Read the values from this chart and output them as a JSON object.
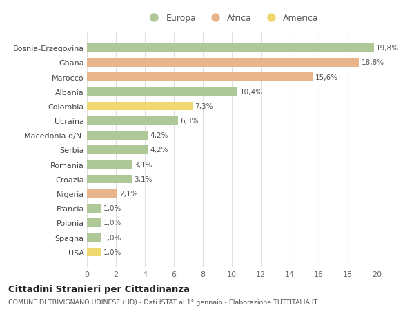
{
  "categories": [
    "Bosnia-Erzegovina",
    "Ghana",
    "Marocco",
    "Albania",
    "Colombia",
    "Ucraina",
    "Macedonia d/N.",
    "Serbia",
    "Romania",
    "Croazia",
    "Nigeria",
    "Francia",
    "Polonia",
    "Spagna",
    "USA"
  ],
  "values": [
    19.8,
    18.8,
    15.6,
    10.4,
    7.3,
    6.3,
    4.2,
    4.2,
    3.1,
    3.1,
    2.1,
    1.0,
    1.0,
    1.0,
    1.0
  ],
  "labels": [
    "19,8%",
    "18,8%",
    "15,6%",
    "10,4%",
    "7,3%",
    "6,3%",
    "4,2%",
    "4,2%",
    "3,1%",
    "3,1%",
    "2,1%",
    "1,0%",
    "1,0%",
    "1,0%",
    "1,0%"
  ],
  "continents": [
    "Europa",
    "Africa",
    "Africa",
    "Europa",
    "America",
    "Europa",
    "Europa",
    "Europa",
    "Europa",
    "Europa",
    "Africa",
    "Europa",
    "Europa",
    "Europa",
    "America"
  ],
  "colors": {
    "Europa": "#aec898",
    "Africa": "#e8b48c",
    "America": "#f0d870"
  },
  "xlim": [
    0,
    20
  ],
  "xticks": [
    0,
    2,
    4,
    6,
    8,
    10,
    12,
    14,
    16,
    18,
    20
  ],
  "title": "Cittadini Stranieri per Cittadinanza",
  "subtitle": "COMUNE DI TRIVIGNANO UDINESE (UD) - Dati ISTAT al 1° gennaio - Elaborazione TUTTITALIA.IT",
  "background_color": "#ffffff",
  "grid_color": "#e0e0e0"
}
